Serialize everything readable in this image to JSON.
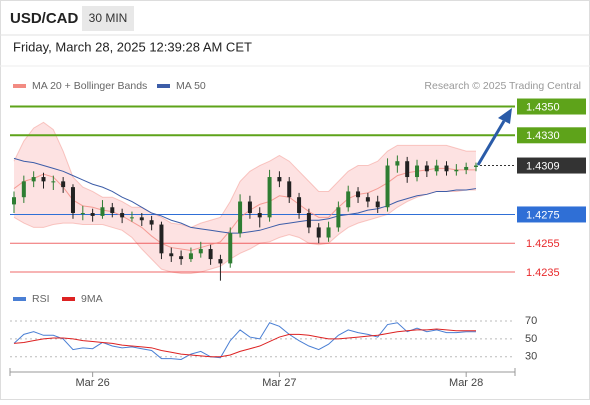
{
  "header": {
    "symbol": "USD/CAD",
    "timeframe": "30 MIN",
    "timestamp": "Friday, March 28, 2025 12:39:28 AM CET"
  },
  "chart_data": [
    {
      "type": "candlestick",
      "source": "Research © 2025 Trading Central",
      "categories": [
        null,
        null,
        null,
        null,
        null,
        null,
        null,
        null,
        "Mar 26",
        null,
        null,
        null,
        null,
        null,
        null,
        null,
        null,
        null,
        null,
        null,
        null,
        null,
        null,
        null,
        null,
        null,
        null,
        "Mar 27",
        null,
        null,
        null,
        null,
        null,
        null,
        null,
        null,
        null,
        null,
        null,
        null,
        null,
        null,
        null,
        null,
        null,
        null,
        "Mar 28",
        null
      ],
      "ohlc": [
        [
          1.4282,
          1.4291,
          1.4276,
          1.4287
        ],
        [
          1.4287,
          1.4302,
          1.4283,
          1.4298
        ],
        [
          1.4298,
          1.4305,
          1.4294,
          1.4301
        ],
        [
          1.4301,
          1.4304,
          1.4293,
          1.4298
        ],
        [
          1.4298,
          1.4302,
          1.4292,
          1.4298
        ],
        [
          1.4298,
          1.4301,
          1.429,
          1.4294
        ],
        [
          1.4294,
          1.4296,
          1.4272,
          1.4276
        ],
        [
          1.4276,
          1.4281,
          1.4271,
          1.4276
        ],
        [
          1.4276,
          1.4279,
          1.427,
          1.4274
        ],
        [
          1.4274,
          1.4285,
          1.4272,
          1.428
        ],
        [
          1.428,
          1.4283,
          1.4273,
          1.4276
        ],
        [
          1.4276,
          1.4279,
          1.4269,
          1.4273
        ],
        [
          1.4273,
          1.4277,
          1.427,
          1.4273
        ],
        [
          1.4273,
          1.4276,
          1.4267,
          1.4271
        ],
        [
          1.4271,
          1.4274,
          1.4264,
          1.4268
        ],
        [
          1.4268,
          1.427,
          1.4244,
          1.4248
        ],
        [
          1.4248,
          1.4252,
          1.4242,
          1.4246
        ],
        [
          1.4246,
          1.425,
          1.424,
          1.4244
        ],
        [
          1.4244,
          1.4252,
          1.4242,
          1.4248
        ],
        [
          1.4248,
          1.4256,
          1.4245,
          1.4251
        ],
        [
          1.4251,
          1.4254,
          1.424,
          1.4244
        ],
        [
          1.4244,
          1.4247,
          1.4229,
          1.4241
        ],
        [
          1.4241,
          1.4266,
          1.4238,
          1.4262
        ],
        [
          1.4262,
          1.4289,
          1.4259,
          1.4284
        ],
        [
          1.4284,
          1.4288,
          1.4272,
          1.4276
        ],
        [
          1.4276,
          1.428,
          1.4266,
          1.4273
        ],
        [
          1.4273,
          1.4306,
          1.427,
          1.4301
        ],
        [
          1.4301,
          1.4305,
          1.4294,
          1.4298
        ],
        [
          1.4298,
          1.4301,
          1.4283,
          1.4287
        ],
        [
          1.4287,
          1.429,
          1.4272,
          1.4276
        ],
        [
          1.4276,
          1.4279,
          1.4262,
          1.4266
        ],
        [
          1.4266,
          1.4269,
          1.4255,
          1.4259
        ],
        [
          1.4259,
          1.427,
          1.4256,
          1.4266
        ],
        [
          1.4266,
          1.4284,
          1.4263,
          1.428
        ],
        [
          1.428,
          1.4295,
          1.4277,
          1.4291
        ],
        [
          1.4291,
          1.4294,
          1.4283,
          1.4287
        ],
        [
          1.4287,
          1.429,
          1.428,
          1.4284
        ],
        [
          1.4284,
          1.4288,
          1.4276,
          1.428
        ],
        [
          1.428,
          1.4314,
          1.4277,
          1.4309
        ],
        [
          1.4309,
          1.4316,
          1.4304,
          1.4312
        ],
        [
          1.4312,
          1.4315,
          1.4297,
          1.4301
        ],
        [
          1.4301,
          1.4313,
          1.4298,
          1.4309
        ],
        [
          1.4309,
          1.4312,
          1.4301,
          1.4305
        ],
        [
          1.4305,
          1.4313,
          1.4302,
          1.4309
        ],
        [
          1.4309,
          1.4312,
          1.4302,
          1.4305
        ],
        [
          1.4305,
          1.431,
          1.4302,
          1.4306
        ],
        [
          1.4306,
          1.4311,
          1.4303,
          1.4308
        ],
        [
          1.4308,
          1.4311,
          1.4305,
          1.4309
        ]
      ],
      "up_color": "#2e7d32",
      "down_color": "#222222",
      "ylim": [
        1.4226,
        1.4358
      ],
      "series": [
        {
          "name": "MA 20 + Bollinger Bands",
          "color": "#f28b82",
          "band_color": "#fde2e2",
          "values": [
            1.4293,
            1.4298,
            1.43,
            1.4303,
            1.4301,
            1.4294,
            1.4285,
            1.4281,
            1.428,
            1.4278,
            1.4277,
            1.4274,
            1.427,
            1.4266,
            1.426,
            1.4255,
            1.4252,
            1.4251,
            1.425,
            1.4252,
            1.4254,
            1.4256,
            1.4264,
            1.4273,
            1.4278,
            1.4282,
            1.4284,
            1.4288,
            1.4287,
            1.4282,
            1.4277,
            1.4273,
            1.4273,
            1.428,
            1.4286,
            1.4289,
            1.429,
            1.4293,
            1.4297,
            1.4302,
            1.4304,
            1.4305,
            1.4306,
            1.4307,
            1.4307,
            1.4306,
            1.4306,
            1.4306
          ],
          "upper": [
            1.4312,
            1.4326,
            1.4335,
            1.4339,
            1.4334,
            1.4319,
            1.4301,
            1.4294,
            1.4291,
            1.4287,
            1.4287,
            1.4284,
            1.428,
            1.428,
            1.4276,
            1.4273,
            1.4269,
            1.4268,
            1.4266,
            1.4269,
            1.4271,
            1.4273,
            1.4284,
            1.4298,
            1.4305,
            1.4309,
            1.4312,
            1.4316,
            1.4312,
            1.4305,
            1.4298,
            1.4291,
            1.4291,
            1.4298,
            1.4305,
            1.4309,
            1.4309,
            1.4312,
            1.4319,
            1.4323,
            1.4323,
            1.4323,
            1.4323,
            1.4323,
            1.4323,
            1.4321,
            1.4319,
            1.4319
          ],
          "lower": [
            1.4273,
            1.4269,
            1.4266,
            1.4266,
            1.4268,
            1.4269,
            1.4269,
            1.4268,
            1.4268,
            1.4268,
            1.4266,
            1.4264,
            1.4259,
            1.4251,
            1.4244,
            1.4237,
            1.4235,
            1.4234,
            1.4234,
            1.4235,
            1.4237,
            1.4239,
            1.4244,
            1.4248,
            1.4251,
            1.4255,
            1.4256,
            1.4259,
            1.4261,
            1.4259,
            1.4255,
            1.4254,
            1.4255,
            1.4261,
            1.4266,
            1.4269,
            1.4271,
            1.4273,
            1.4275,
            1.428,
            1.4284,
            1.4287,
            1.4289,
            1.4291,
            1.4291,
            1.4291,
            1.4292,
            1.4292
          ]
        },
        {
          "name": "MA 50",
          "color": "#3d5da8",
          "values": [
            1.4314,
            1.4312,
            1.4311,
            1.4309,
            1.4307,
            1.4305,
            1.4302,
            1.4299,
            1.4296,
            1.4294,
            1.4291,
            1.4287,
            1.4284,
            1.428,
            1.4276,
            1.4274,
            1.4271,
            1.4269,
            1.4266,
            1.4265,
            1.4264,
            1.4263,
            1.4262,
            1.4262,
            1.4263,
            1.4264,
            1.4266,
            1.4268,
            1.4269,
            1.427,
            1.4271,
            1.4271,
            1.4272,
            1.4274,
            1.4275,
            1.4276,
            1.4278,
            1.4279,
            1.4281,
            1.4284,
            1.4286,
            1.4288,
            1.4289,
            1.4291,
            1.4291,
            1.4292,
            1.4292,
            1.4293
          ]
        }
      ],
      "levels": [
        {
          "value": 1.435,
          "label": "1.4350",
          "color": "#5ea31a",
          "boxed": true,
          "dashed": false
        },
        {
          "value": 1.433,
          "label": "1.4330",
          "color": "#5ea31a",
          "boxed": true,
          "dashed": false
        },
        {
          "value": 1.4309,
          "label": "1.4309",
          "color": "#333333",
          "boxed": true,
          "dashed": true
        },
        {
          "value": 1.4275,
          "label": "1.4275",
          "color": "#2f6fd6",
          "boxed": true,
          "dashed": false
        },
        {
          "value": 1.4255,
          "label": "1.4255",
          "color": "#e8292b",
          "boxed": false,
          "dashed": false
        },
        {
          "value": 1.4235,
          "label": "1.4235",
          "color": "#e8292b",
          "boxed": false,
          "dashed": false
        }
      ]
    },
    {
      "type": "line",
      "ylim": [
        13,
        80
      ],
      "yticks": [
        70,
        50,
        30
      ],
      "series": [
        {
          "name": "RSI",
          "color": "#4a7fd4",
          "values": [
            45,
            55,
            58,
            54,
            54,
            50,
            38,
            40,
            39,
            46,
            42,
            40,
            41,
            39,
            37,
            28,
            28,
            27,
            33,
            36,
            30,
            29,
            48,
            60,
            52,
            50,
            68,
            64,
            55,
            48,
            42,
            38,
            44,
            54,
            60,
            57,
            55,
            52,
            66,
            68,
            58,
            62,
            58,
            60,
            57,
            57,
            58,
            58
          ]
        },
        {
          "name": "9MA",
          "color": "#dd2222",
          "values": [
            45,
            46,
            48,
            50,
            51,
            51,
            50,
            48,
            47,
            46,
            45,
            43,
            42,
            41,
            40,
            37,
            35,
            33,
            32,
            31,
            30,
            30,
            32,
            36,
            39,
            42,
            47,
            52,
            55,
            55,
            54,
            52,
            50,
            50,
            51,
            52,
            53,
            54,
            56,
            58,
            59,
            60,
            60,
            61,
            60,
            59,
            59,
            59
          ]
        }
      ]
    }
  ]
}
